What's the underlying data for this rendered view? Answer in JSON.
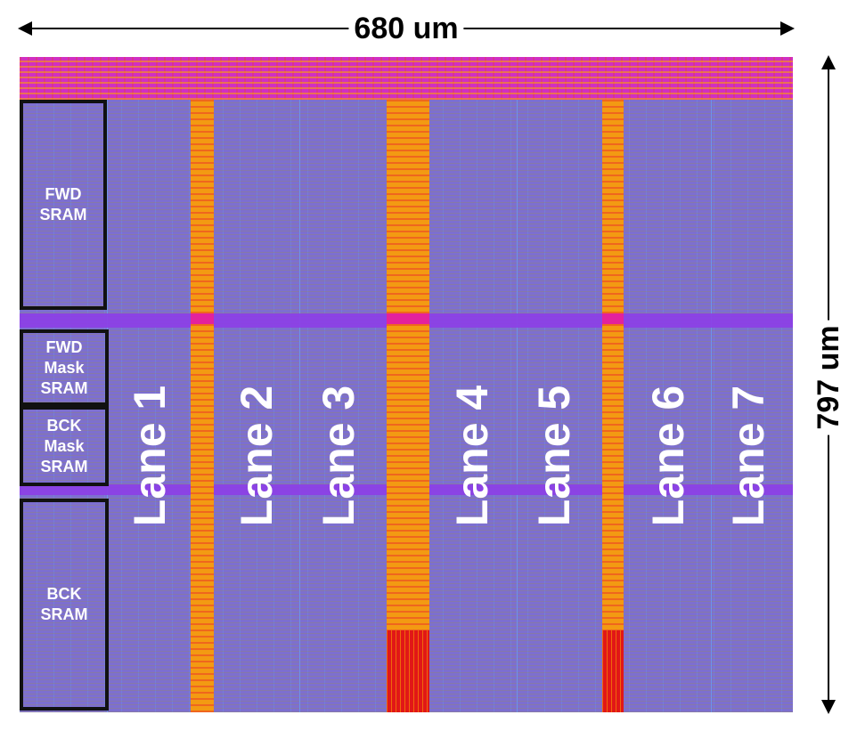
{
  "dimensions": {
    "width_label": "680 um",
    "height_label": "797 um"
  },
  "sram_blocks": [
    {
      "id": "fwd-sram",
      "text": "FWD\nSRAM"
    },
    {
      "id": "fwd-mask-sram",
      "text": "FWD\nMask\nSRAM"
    },
    {
      "id": "bck-mask-sram",
      "text": "BCK\nMask\nSRAM"
    },
    {
      "id": "bck-sram",
      "text": "BCK\nSRAM"
    }
  ],
  "lanes": [
    "Lane 1",
    "Lane 2",
    "Lane 3",
    "Lane 4",
    "Lane 5",
    "Lane 6",
    "Lane 7"
  ],
  "colors": {
    "logic": "#7d6fd0",
    "bus_orange": "#f39a12",
    "bus_magenta": "#d12fc2",
    "hot_red": "#e11717",
    "stripe_purple": "#8c3fe6"
  }
}
